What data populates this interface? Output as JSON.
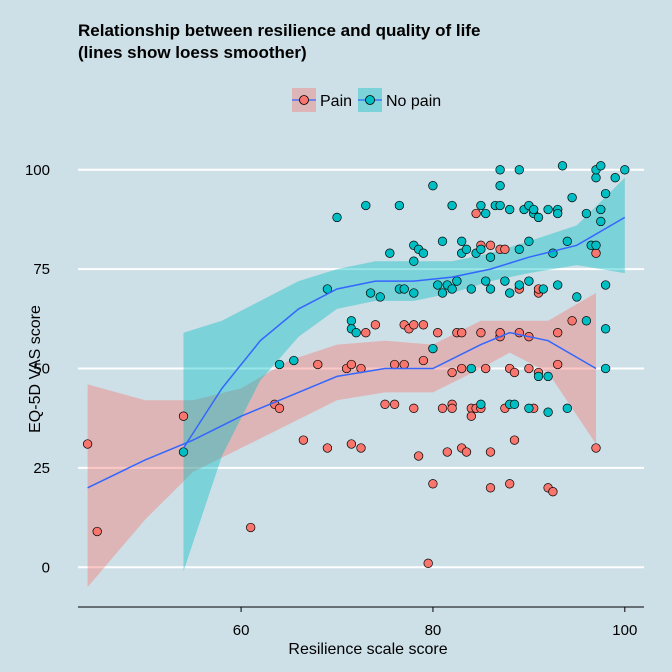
{
  "chart_data": {
    "type": "scatter",
    "title_line1": "Relationship between resilience and quality of life",
    "title_line2": "(lines show loess smoother)",
    "xlabel": "Resilience scale score",
    "ylabel": "EQ-5D VAS score",
    "xlim": [
      43,
      102
    ],
    "ylim": [
      -10,
      110
    ],
    "x_ticks": [
      60,
      80,
      100
    ],
    "y_ticks": [
      0,
      25,
      50,
      75,
      100
    ],
    "grid": "horizontal",
    "legend_position": "top",
    "smoother": "loess",
    "series": [
      {
        "name": "Pain",
        "color": "#f8766d",
        "points": [
          [
            44,
            31
          ],
          [
            45,
            9
          ],
          [
            54,
            38
          ],
          [
            61,
            10
          ],
          [
            63.5,
            41
          ],
          [
            64,
            40
          ],
          [
            66.5,
            32
          ],
          [
            68,
            51
          ],
          [
            69,
            30
          ],
          [
            71,
            50
          ],
          [
            71.5,
            51
          ],
          [
            71.5,
            31
          ],
          [
            72.5,
            50
          ],
          [
            72.5,
            30
          ],
          [
            73,
            59
          ],
          [
            74,
            61
          ],
          [
            75,
            41
          ],
          [
            76,
            41
          ],
          [
            76,
            51
          ],
          [
            77,
            51
          ],
          [
            77,
            61
          ],
          [
            77.5,
            60
          ],
          [
            78,
            61
          ],
          [
            78,
            40
          ],
          [
            78.5,
            28
          ],
          [
            79,
            61
          ],
          [
            79,
            52
          ],
          [
            79.5,
            1
          ],
          [
            80,
            21
          ],
          [
            80.5,
            59
          ],
          [
            81,
            40
          ],
          [
            81.5,
            29
          ],
          [
            82,
            41
          ],
          [
            82,
            40
          ],
          [
            82,
            49
          ],
          [
            82.5,
            59
          ],
          [
            83,
            30
          ],
          [
            83.5,
            29
          ],
          [
            83,
            50
          ],
          [
            84,
            40
          ],
          [
            84,
            38
          ],
          [
            84.5,
            40
          ],
          [
            84.5,
            89
          ],
          [
            85,
            59
          ],
          [
            85,
            40
          ],
          [
            85.5,
            50
          ],
          [
            86,
            20
          ],
          [
            86,
            29
          ],
          [
            87,
            58
          ],
          [
            87,
            59
          ],
          [
            87.5,
            40
          ],
          [
            88,
            21
          ],
          [
            88,
            50
          ],
          [
            88.5,
            49
          ],
          [
            88.5,
            32
          ],
          [
            89,
            70
          ],
          [
            89,
            59
          ],
          [
            90,
            58
          ],
          [
            90,
            50
          ],
          [
            90.5,
            40
          ],
          [
            91,
            69
          ],
          [
            91,
            70
          ],
          [
            91,
            49
          ],
          [
            92,
            20
          ],
          [
            92.5,
            19
          ],
          [
            93,
            51
          ],
          [
            93,
            59
          ],
          [
            94.5,
            62
          ],
          [
            97,
            30
          ],
          [
            97,
            79
          ],
          [
            83,
            59
          ],
          [
            85,
            81
          ],
          [
            86,
            81
          ],
          [
            87,
            80
          ],
          [
            87.5,
            80
          ]
        ],
        "loess_fit": [
          [
            44,
            20
          ],
          [
            50,
            27
          ],
          [
            55,
            32
          ],
          [
            60,
            38
          ],
          [
            65,
            43
          ],
          [
            70,
            48
          ],
          [
            75,
            50
          ],
          [
            80,
            50
          ],
          [
            85,
            56
          ],
          [
            88,
            59
          ],
          [
            92,
            57
          ],
          [
            97,
            50
          ]
        ],
        "ci_upper": [
          [
            44,
            46
          ],
          [
            50,
            42
          ],
          [
            55,
            42
          ],
          [
            60,
            45
          ],
          [
            65,
            52
          ],
          [
            70,
            56
          ],
          [
            75,
            57
          ],
          [
            80,
            56
          ],
          [
            85,
            62
          ],
          [
            88,
            62
          ],
          [
            92,
            62
          ],
          [
            97,
            69
          ]
        ],
        "ci_lower": [
          [
            44,
            -5
          ],
          [
            50,
            12
          ],
          [
            55,
            24
          ],
          [
            60,
            30
          ],
          [
            65,
            36
          ],
          [
            70,
            42
          ],
          [
            75,
            44
          ],
          [
            80,
            44
          ],
          [
            85,
            50
          ],
          [
            88,
            54
          ],
          [
            92,
            49
          ],
          [
            97,
            31
          ]
        ]
      },
      {
        "name": "No pain",
        "color": "#00bfc4",
        "points": [
          [
            54,
            29
          ],
          [
            64,
            51
          ],
          [
            65.5,
            52
          ],
          [
            69,
            70
          ],
          [
            70,
            88
          ],
          [
            71.5,
            62
          ],
          [
            71.5,
            60
          ],
          [
            72,
            59
          ],
          [
            73,
            91
          ],
          [
            73.5,
            69
          ],
          [
            74.5,
            68
          ],
          [
            75.5,
            79
          ],
          [
            76.5,
            91
          ],
          [
            76.5,
            70
          ],
          [
            77,
            70
          ],
          [
            78,
            69
          ],
          [
            78,
            77
          ],
          [
            78,
            81
          ],
          [
            78.5,
            80
          ],
          [
            79,
            79
          ],
          [
            80,
            96
          ],
          [
            80.5,
            71
          ],
          [
            81,
            69
          ],
          [
            81.5,
            71
          ],
          [
            82,
            70
          ],
          [
            82,
            91
          ],
          [
            82.5,
            72
          ],
          [
            83,
            79
          ],
          [
            83,
            82
          ],
          [
            83.5,
            80
          ],
          [
            84,
            70
          ],
          [
            84.5,
            79
          ],
          [
            85,
            80
          ],
          [
            85,
            91
          ],
          [
            85.5,
            89
          ],
          [
            85.5,
            72
          ],
          [
            86,
            70
          ],
          [
            86,
            78
          ],
          [
            86.5,
            91
          ],
          [
            87,
            96
          ],
          [
            87,
            91
          ],
          [
            87,
            100
          ],
          [
            87.5,
            72
          ],
          [
            88,
            90
          ],
          [
            88,
            69
          ],
          [
            88,
            41
          ],
          [
            89,
            100
          ],
          [
            89,
            71
          ],
          [
            89,
            80
          ],
          [
            89.5,
            90
          ],
          [
            90,
            91
          ],
          [
            90,
            72
          ],
          [
            90,
            82
          ],
          [
            90.5,
            89
          ],
          [
            90.5,
            90
          ],
          [
            91,
            48
          ],
          [
            91,
            88
          ],
          [
            91.5,
            70
          ],
          [
            92,
            90
          ],
          [
            92,
            48
          ],
          [
            92.5,
            79
          ],
          [
            93,
            90
          ],
          [
            93,
            71
          ],
          [
            93,
            89
          ],
          [
            93.5,
            101
          ],
          [
            94,
            40
          ],
          [
            94.5,
            93
          ],
          [
            95,
            68
          ],
          [
            96,
            89
          ],
          [
            96.5,
            81
          ],
          [
            97,
            98
          ],
          [
            97,
            100
          ],
          [
            97,
            81
          ],
          [
            97.5,
            101
          ],
          [
            97.5,
            90
          ],
          [
            97.5,
            87
          ],
          [
            98,
            94
          ],
          [
            98,
            71
          ],
          [
            98,
            60
          ],
          [
            98,
            50
          ],
          [
            99,
            98
          ],
          [
            100,
            100
          ],
          [
            84,
            50
          ],
          [
            85,
            41
          ],
          [
            88.5,
            41
          ],
          [
            90,
            40
          ],
          [
            92,
            39
          ],
          [
            96,
            62
          ],
          [
            94,
            82
          ],
          [
            80,
            55
          ],
          [
            81,
            82
          ]
        ],
        "loess_fit": [
          [
            54,
            30
          ],
          [
            58,
            45
          ],
          [
            62,
            57
          ],
          [
            66,
            65
          ],
          [
            70,
            70
          ],
          [
            74,
            72
          ],
          [
            78,
            72
          ],
          [
            82,
            73
          ],
          [
            86,
            75
          ],
          [
            90,
            78
          ],
          [
            95,
            81
          ],
          [
            100,
            88
          ]
        ],
        "ci_upper": [
          [
            54,
            59
          ],
          [
            58,
            62
          ],
          [
            62,
            67
          ],
          [
            66,
            72
          ],
          [
            70,
            75
          ],
          [
            74,
            77
          ],
          [
            78,
            77
          ],
          [
            82,
            77
          ],
          [
            86,
            79
          ],
          [
            90,
            82
          ],
          [
            95,
            86
          ],
          [
            100,
            98
          ]
        ],
        "ci_lower": [
          [
            54,
            -1
          ],
          [
            58,
            28
          ],
          [
            62,
            47
          ],
          [
            66,
            58
          ],
          [
            70,
            65
          ],
          [
            74,
            67
          ],
          [
            78,
            67
          ],
          [
            82,
            69
          ],
          [
            86,
            72
          ],
          [
            90,
            74
          ],
          [
            95,
            76
          ],
          [
            100,
            74
          ]
        ]
      }
    ]
  }
}
